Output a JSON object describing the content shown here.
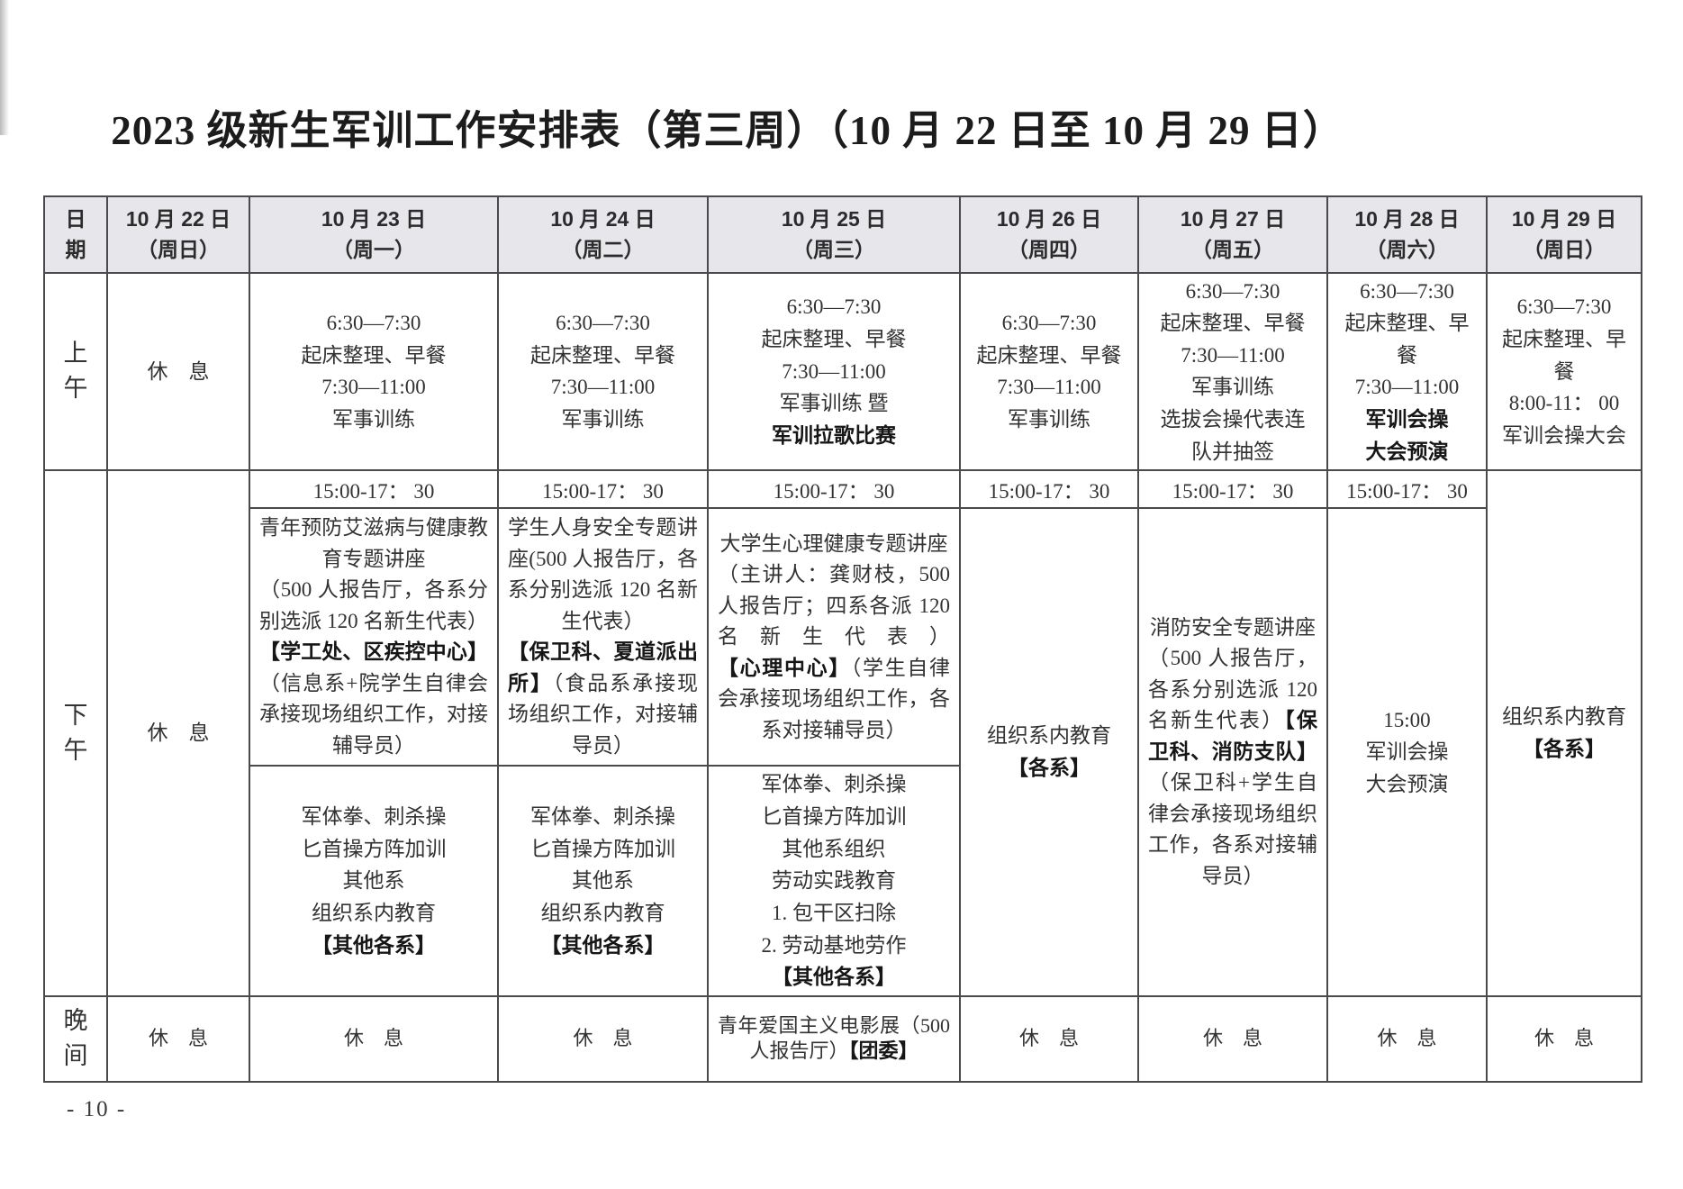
{
  "title": "2023 级新生军训工作安排表（第三周）（10 月 22 日至 10 月 29 日）",
  "page_number": "- 10 -",
  "colors": {
    "header_bg": "#e7e7eb",
    "border": "#4a4a4a",
    "text": "#323232"
  },
  "header": {
    "date_label": [
      [
        "日"
      ],
      [
        "期"
      ]
    ],
    "days": [
      {
        "date": "10 月 22 日",
        "week": "（周日）"
      },
      {
        "date": "10 月 23 日",
        "week": "（周一）"
      },
      {
        "date": "10 月 24 日",
        "week": "（周二）"
      },
      {
        "date": "10 月 25 日",
        "week": "（周三）"
      },
      {
        "date": "10 月 26 日",
        "week": "（周四）"
      },
      {
        "date": "10 月 27 日",
        "week": "（周五）"
      },
      {
        "date": "10 月 28 日",
        "week": "（周六）"
      },
      {
        "date": "10 月 29 日",
        "week": "（周日）"
      }
    ]
  },
  "row_labels": {
    "morning": [
      [
        "上"
      ],
      [
        "午"
      ]
    ],
    "afternoon": [
      [
        "下"
      ],
      [
        "午"
      ]
    ],
    "evening": [
      [
        "晚"
      ],
      [
        "间"
      ]
    ]
  },
  "morning": {
    "d22": [
      [
        "休　息"
      ]
    ],
    "d23": [
      [
        "6:30—7:30"
      ],
      [
        "起床整理、早餐"
      ],
      [
        "7:30—11:00"
      ],
      [
        "军事训练"
      ]
    ],
    "d24": [
      [
        "6:30—7:30"
      ],
      [
        "起床整理、早餐"
      ],
      [
        "7:30—11:00"
      ],
      [
        "军事训练"
      ]
    ],
    "d25": [
      [
        "6:30—7:30"
      ],
      [
        "起床整理、早餐"
      ],
      [
        "7:30—11:00"
      ],
      [
        "军事训练 暨"
      ],
      [
        {
          "t": "军训拉歌比赛",
          "b": true
        }
      ]
    ],
    "d26": [
      [
        "6:30—7:30"
      ],
      [
        "起床整理、早餐"
      ],
      [
        "7:30—11:00"
      ],
      [
        "军事训练"
      ]
    ],
    "d27": [
      [
        "6:30—7:30"
      ],
      [
        "起床整理、早餐"
      ],
      [
        "7:30—11:00"
      ],
      [
        "军事训练"
      ],
      [
        "选拔会操代表连"
      ],
      [
        "队并抽签"
      ]
    ],
    "d28": [
      [
        "6:30—7:30"
      ],
      [
        "起床整理、早"
      ],
      [
        "餐"
      ],
      [
        "7:30—11:00"
      ],
      [
        {
          "t": "军训会操",
          "b": true
        }
      ],
      [
        {
          "t": "大会预演",
          "b": true
        }
      ]
    ],
    "d29": [
      [
        "6:30—7:30"
      ],
      [
        "起床整理、早餐"
      ],
      [
        "8:00-11： 00"
      ],
      [
        "军训会操大会"
      ]
    ]
  },
  "afternoon": {
    "time_label": "15:00-17： 30",
    "d22": [
      [
        "休　息"
      ]
    ],
    "d23_upper": [
      [
        "青年预防艾滋病与健康教育专题讲座"
      ],
      [
        "（500 人报告厅，各系分别选派 120 名新生代表）",
        {
          "t": "【学工处、区疾控中心】",
          "b": true
        },
        "（信息系+院学生自律会承接现场组织工作，对接辅导员）"
      ]
    ],
    "d23_lower": [
      [
        "军体拳、刺杀操"
      ],
      [
        "匕首操方阵加训"
      ],
      [
        "其他系"
      ],
      [
        "组织系内教育"
      ],
      [
        {
          "t": "【其他各系】",
          "b": true
        }
      ]
    ],
    "d24_upper": [
      [
        "学生人身安全专题讲座(500 人报告厅，各系分别选派 120 名新生代表）"
      ],
      [
        {
          "t": "【保卫科、夏道派出所】",
          "b": true
        },
        "（食品系承接现场组织工作，对接辅导员）"
      ]
    ],
    "d24_lower": [
      [
        "军体拳、刺杀操"
      ],
      [
        "匕首操方阵加训"
      ],
      [
        "其他系"
      ],
      [
        "组织系内教育"
      ],
      [
        {
          "t": "【其他各系】",
          "b": true
        }
      ]
    ],
    "d25_upper": [
      [
        "大学生心理健康专题讲座"
      ],
      [
        "（主讲人：龚财枝，500 人报告厅；四系各派 120 名新生代表）",
        {
          "t": "【心理中心】",
          "b": true
        },
        "（学生自律会承接现场组织工作，各系对接辅导员）"
      ]
    ],
    "d25_lower": [
      [
        "军体拳、刺杀操"
      ],
      [
        "匕首操方阵加训"
      ],
      [
        "其他系组织"
      ],
      [
        "劳动实践教育"
      ],
      [
        "1. 包干区扫除"
      ],
      [
        "2. 劳动基地劳作"
      ],
      [
        {
          "t": "【其他各系】",
          "b": true
        }
      ]
    ],
    "d26": [
      [
        "组织系内教育"
      ],
      [
        {
          "t": "【各系】",
          "b": true
        }
      ]
    ],
    "d27": [
      [
        "消防安全专题讲座"
      ],
      [
        "（500 人报告厅，各系分别选派 120 名新生代表）",
        {
          "t": "【保卫科、消防支队】",
          "b": true
        },
        "（保卫科+学生自律会承接现场组织工作，各系对接辅导员）"
      ]
    ],
    "d28": [
      [
        "15:00"
      ],
      [
        "军训会操"
      ],
      [
        "大会预演"
      ]
    ],
    "d29": [
      [
        "组织系内教育"
      ],
      [
        {
          "t": "【各系】",
          "b": true
        }
      ]
    ]
  },
  "evening": {
    "d22": [
      [
        "休　息"
      ]
    ],
    "d23": [
      [
        "休　息"
      ]
    ],
    "d24": [
      [
        "休　息"
      ]
    ],
    "d25": [
      [
        "青年爱国主义电影展（500 人报告厅）",
        {
          "t": "【团委】",
          "b": true
        }
      ]
    ],
    "d26": [
      [
        "休　息"
      ]
    ],
    "d27": [
      [
        "休　息"
      ]
    ],
    "d28": [
      [
        "休　息"
      ]
    ],
    "d29": [
      [
        "休　息"
      ]
    ]
  }
}
